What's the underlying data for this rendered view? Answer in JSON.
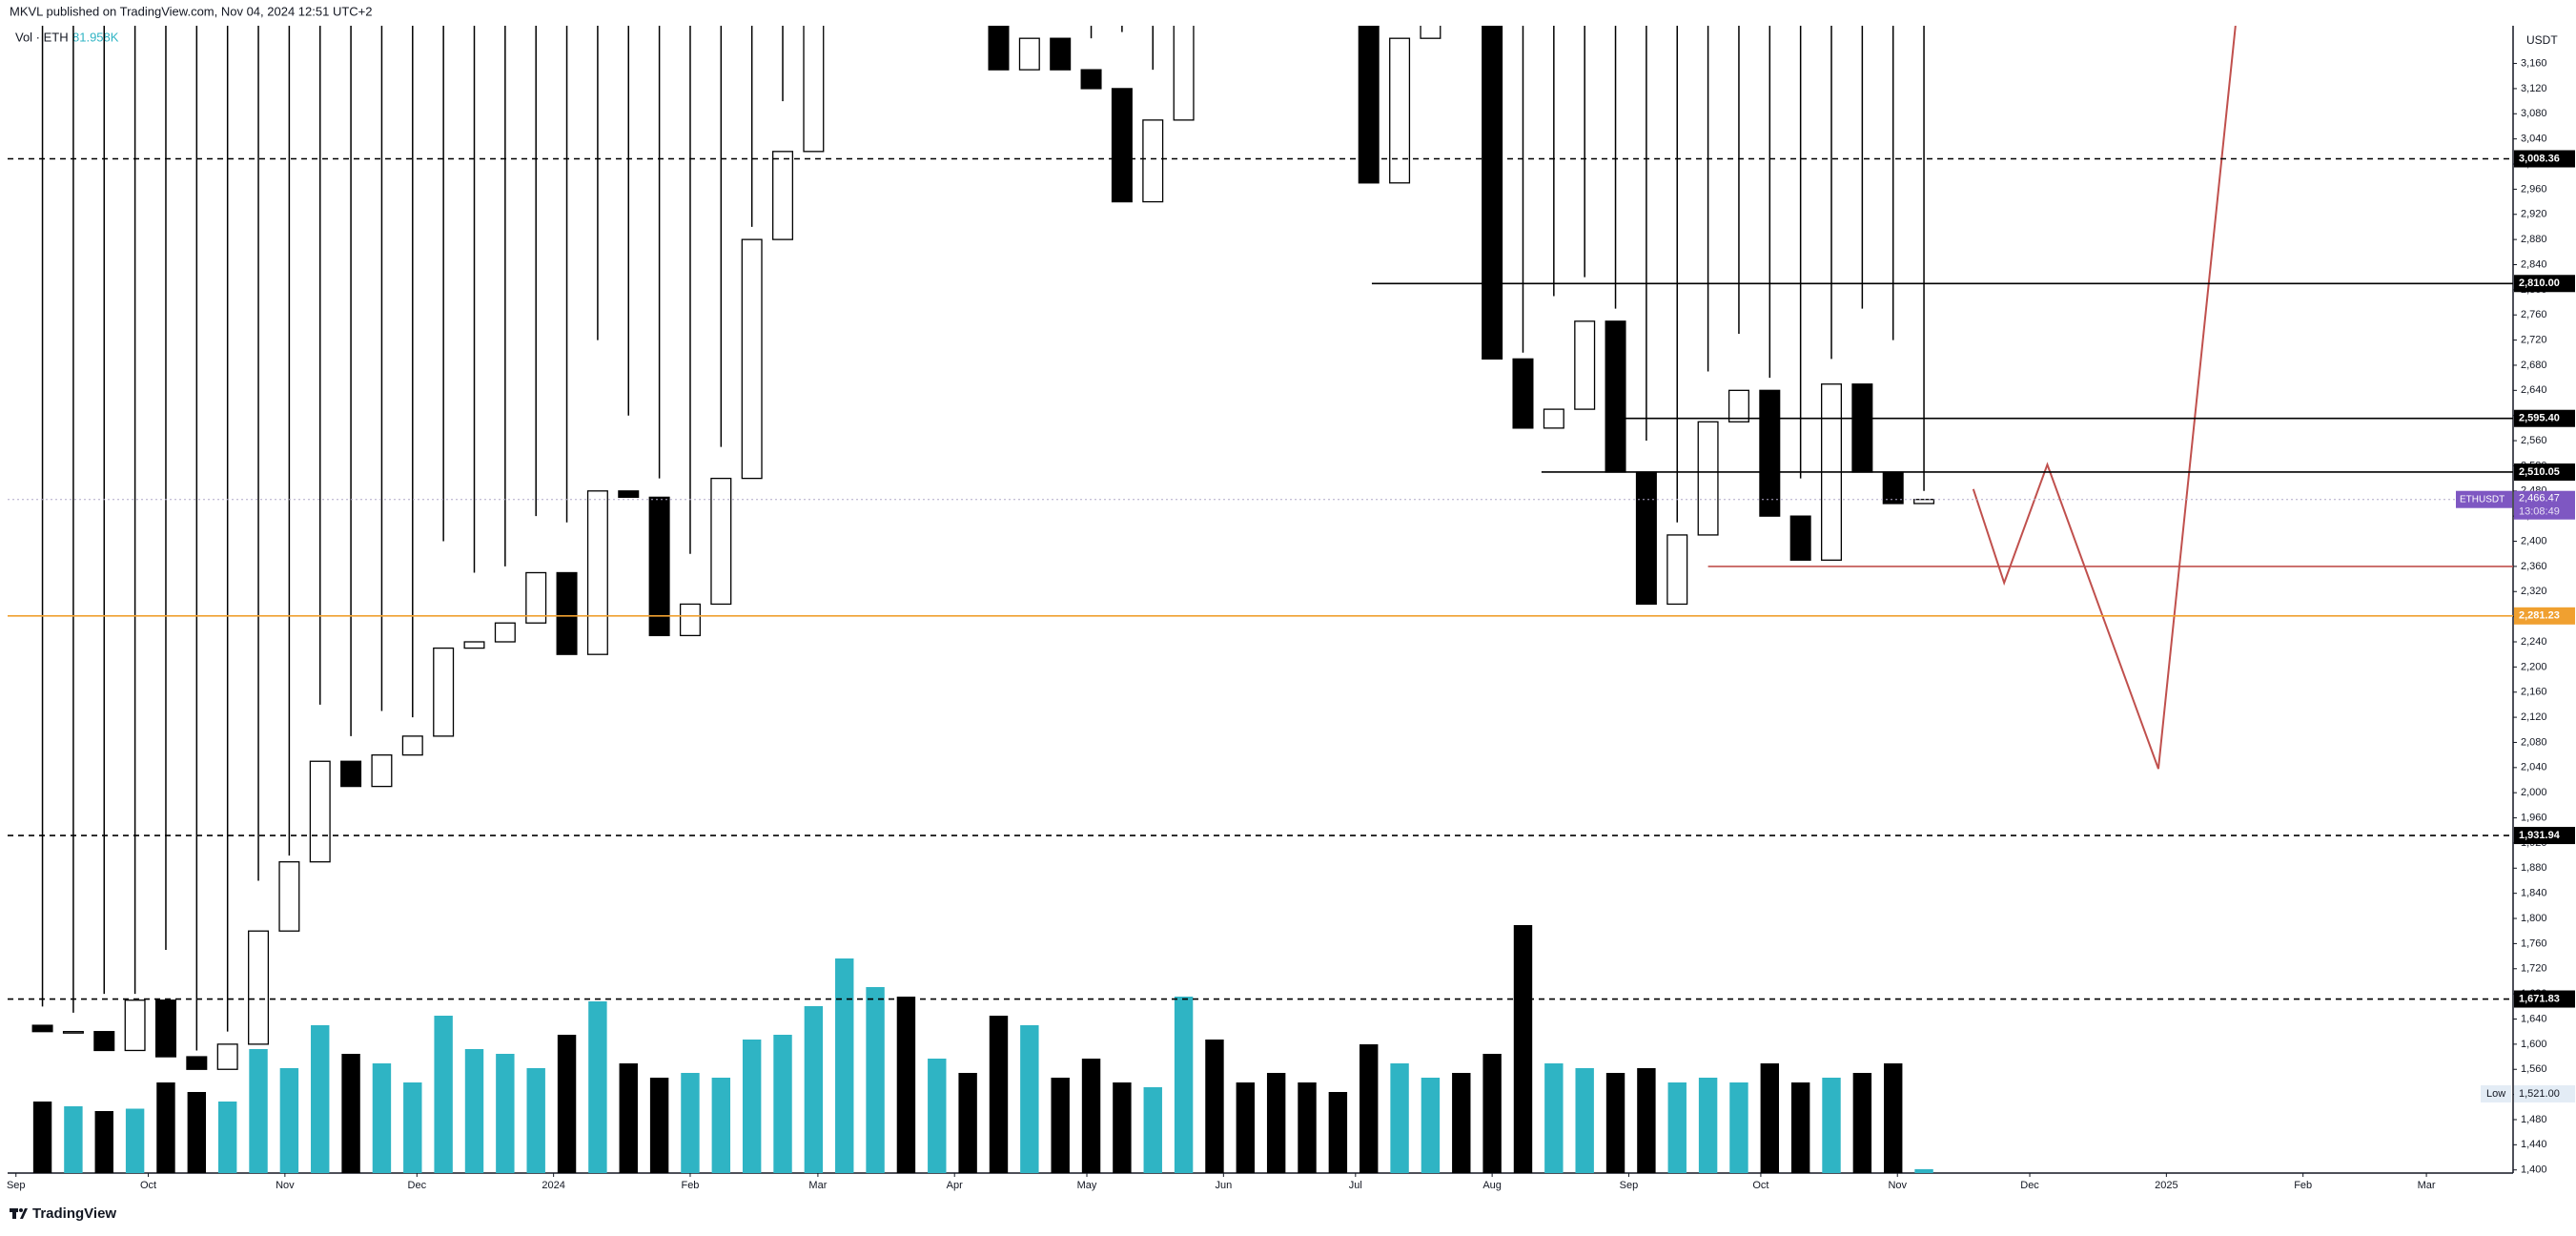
{
  "chart_data": {
    "type": "candlestick",
    "header": "MKVL published on TradingView.com, Nov 04, 2024 12:51 UTC+2",
    "volume_title": "Vol · ETH",
    "volume_label": "81.958K",
    "currency": "USDT",
    "brand": "TradingView",
    "up_color": "#ffffff",
    "down_color": "#000000",
    "volume_up_color": "#2fb4c4",
    "volume_down_color": "#000000",
    "open": [
      1630,
      1620,
      1620,
      1590,
      1670,
      1580,
      1560,
      1600,
      1780,
      1890,
      2050,
      2010,
      2060,
      2090,
      2230,
      2240,
      2270,
      2350,
      2220,
      2480,
      2470,
      2250,
      2300,
      2500,
      2880,
      3020,
      3420,
      3870,
      3890,
      3460,
      3600,
      3320,
      3150,
      3200,
      3150,
      3120,
      2940,
      3070,
      3830,
      3780,
      3670,
      3480,
      3420,
      3400,
      2970,
      3200,
      3440,
      3260,
      2690,
      2580,
      2610,
      2750,
      2510,
      2300,
      2410,
      2590,
      2640,
      2440,
      2370,
      2650,
      2510,
      2460
    ],
    "high": [
      1660,
      1650,
      1680,
      1680,
      1750,
      1590,
      1620,
      1860,
      1900,
      2140,
      2090,
      2130,
      2120,
      2400,
      2350,
      2360,
      2440,
      2430,
      2720,
      2600,
      2500,
      2380,
      2550,
      2900,
      3100,
      3500,
      3950,
      4090,
      3950,
      3730,
      3640,
      3730,
      3280,
      3360,
      3200,
      3210,
      3150,
      3940,
      3980,
      3890,
      3680,
      3620,
      3500,
      3480,
      3230,
      3560,
      3560,
      3400,
      2700,
      2790,
      2820,
      2770,
      2560,
      2430,
      2670,
      2730,
      2660,
      2500,
      2690,
      2770,
      2720,
      2480
    ],
    "low": {
      "text": "Low",
      "value": 1521.0,
      "label": "1,521.00"
    },
    "close": [
      1620,
      1620,
      1590,
      1670,
      1580,
      1560,
      1600,
      1780,
      1890,
      2050,
      2010,
      2060,
      2090,
      2230,
      2240,
      2270,
      2350,
      2220,
      2480,
      2470,
      2250,
      2300,
      2500,
      2880,
      3020,
      3420,
      3870,
      3890,
      3460,
      3600,
      3320,
      3150,
      3200,
      3150,
      3120,
      2940,
      3070,
      3830,
      3780,
      3670,
      3480,
      3420,
      3400,
      2970,
      3200,
      3440,
      3260,
      2690,
      2580,
      2610,
      2750,
      2510,
      2300,
      2410,
      2590,
      2640,
      2440,
      2370,
      2650,
      2510,
      2460,
      2466.47
    ],
    "volumes": [
      1500,
      1400,
      1300,
      1350,
      1900,
      1700,
      1500,
      2600,
      2200,
      3100,
      2500,
      2300,
      1900,
      3300,
      2600,
      2500,
      2200,
      2900,
      3600,
      2300,
      2000,
      2100,
      2000,
      2800,
      2900,
      3500,
      4500,
      3900,
      3700,
      2400,
      2100,
      3300,
      3100,
      2000,
      2400,
      1900,
      1800,
      3700,
      2800,
      1900,
      2100,
      1900,
      1700,
      2700,
      2300,
      2000,
      2100,
      2500,
      5200,
      2300,
      2200,
      2100,
      2200,
      1900,
      2000,
      1900,
      2300,
      1900,
      2000,
      2100,
      2300,
      81.958
    ],
    "xlim": [
      -1.13,
      80.1
    ],
    "xticks": [
      {
        "value": -0.86,
        "label": "Sep"
      },
      {
        "value": 3.43,
        "label": "Oct"
      },
      {
        "value": 7.86,
        "label": "Nov"
      },
      {
        "value": 12.14,
        "label": "Dec"
      },
      {
        "value": 16.57,
        "label": "2024"
      },
      {
        "value": 21,
        "label": "Feb"
      },
      {
        "value": 25.14,
        "label": "Mar"
      },
      {
        "value": 29.57,
        "label": "Apr"
      },
      {
        "value": 33.86,
        "label": "May"
      },
      {
        "value": 38.29,
        "label": "Jun"
      },
      {
        "value": 42.57,
        "label": "Jul"
      },
      {
        "value": 47,
        "label": "Aug"
      },
      {
        "value": 51.43,
        "label": "Sep"
      },
      {
        "value": 55.71,
        "label": "Oct"
      },
      {
        "value": 60.14,
        "label": "Nov"
      },
      {
        "value": 64.43,
        "label": "Dec"
      },
      {
        "value": 68.86,
        "label": "2025"
      },
      {
        "value": 73.29,
        "label": "Feb"
      },
      {
        "value": 77.29,
        "label": "Mar"
      }
    ],
    "ylim": [
      1395,
      3220
    ],
    "yticks": [
      {
        "value": 1400,
        "label": "1,400"
      },
      {
        "value": 1440,
        "label": "1,440"
      },
      {
        "value": 1480,
        "label": "1,480"
      },
      {
        "value": 1520,
        "label": "1,520"
      },
      {
        "value": 1560,
        "label": "1,560"
      },
      {
        "value": 1600,
        "label": "1,600"
      },
      {
        "value": 1640,
        "label": "1,640"
      },
      {
        "value": 1680,
        "label": "1,680"
      },
      {
        "value": 1720,
        "label": "1,720"
      },
      {
        "value": 1760,
        "label": "1,760"
      },
      {
        "value": 1800,
        "label": "1,800"
      },
      {
        "value": 1840,
        "label": "1,840"
      },
      {
        "value": 1880,
        "label": "1,880"
      },
      {
        "value": 1920,
        "label": "1,920"
      },
      {
        "value": 1960,
        "label": "1,960"
      },
      {
        "value": 2000,
        "label": "2,000"
      },
      {
        "value": 2040,
        "label": "2,040"
      },
      {
        "value": 2080,
        "label": "2,080"
      },
      {
        "value": 2120,
        "label": "2,120"
      },
      {
        "value": 2160,
        "label": "2,160"
      },
      {
        "value": 2200,
        "label": "2,200"
      },
      {
        "value": 2240,
        "label": "2,240"
      },
      {
        "value": 2280,
        "label": "2,280"
      },
      {
        "value": 2320,
        "label": "2,320"
      },
      {
        "value": 2360,
        "label": "2,360"
      },
      {
        "value": 2400,
        "label": "2,400"
      },
      {
        "value": 2440,
        "label": "2,440"
      },
      {
        "value": 2480,
        "label": "2,480"
      },
      {
        "value": 2520,
        "label": "2,520"
      },
      {
        "value": 2560,
        "label": "2,560"
      },
      {
        "value": 2600,
        "label": "2,600"
      },
      {
        "value": 2640,
        "label": "2,640"
      },
      {
        "value": 2680,
        "label": "2,680"
      },
      {
        "value": 2720,
        "label": "2,720"
      },
      {
        "value": 2760,
        "label": "2,760"
      },
      {
        "value": 2800,
        "label": "2,800"
      },
      {
        "value": 2840,
        "label": "2,840"
      },
      {
        "value": 2880,
        "label": "2,880"
      },
      {
        "value": 2920,
        "label": "2,920"
      },
      {
        "value": 2960,
        "label": "2,960"
      },
      {
        "value": 3000,
        "label": "3,000"
      },
      {
        "value": 3040,
        "label": "3,040"
      },
      {
        "value": 3080,
        "label": "3,080"
      },
      {
        "value": 3120,
        "label": "3,120"
      },
      {
        "value": 3160,
        "label": "3,160"
      }
    ],
    "levels": [
      {
        "value": 3008.36,
        "label": "3,008.36",
        "style": "dashed",
        "color": "#000000"
      },
      {
        "value": 2810.0,
        "label": "2,810.00",
        "style": "solid",
        "color": "#000000",
        "x_start": 43.1
      },
      {
        "value": 2595.4,
        "label": "2,595.40",
        "style": "solid",
        "color": "#000000",
        "x_start": 51
      },
      {
        "value": 2510.05,
        "label": "2,510.05",
        "style": "solid",
        "color": "#000000",
        "x_start": 48.6
      },
      {
        "value": 2360,
        "style": "solid",
        "color": "#c0504d",
        "x_start": 54
      },
      {
        "value": 2281.23,
        "label": "2,281.23",
        "style": "solid",
        "color": "#f0a030"
      },
      {
        "value": 1931.94,
        "label": "1,931.94",
        "style": "dashed",
        "color": "#000000"
      },
      {
        "value": 1671.83,
        "label": "1,671.83",
        "style": "dashed",
        "color": "#000000"
      }
    ],
    "last": {
      "symbol": "ETHUSDT",
      "value": 2466.47,
      "label": "2,466.47",
      "countdown": "13:08:49",
      "color": "#7e57c2"
    },
    "projection": {
      "color": "#c0504d",
      "x": [
        62.6,
        63.6,
        65,
        68.6,
        71.1
      ],
      "values": [
        2483,
        2334,
        2522,
        2038,
        3220
      ]
    }
  }
}
